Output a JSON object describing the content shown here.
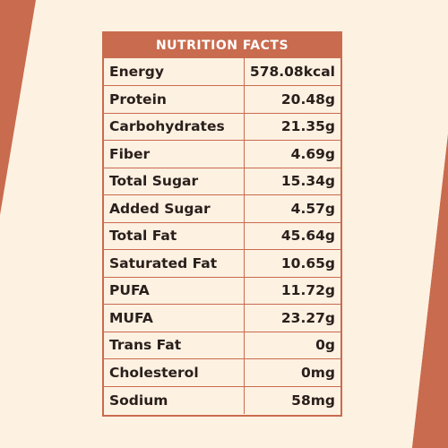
{
  "colors": {
    "accent": "#c96b4e",
    "background_light": "#fdf1e2",
    "panel_bg": "#fdf1e2",
    "text": "#2a1f1b"
  },
  "panel": {
    "title": "NUTRITION FACTS",
    "rows": [
      {
        "name": "Energy",
        "value": "578.08kcal"
      },
      {
        "name": "Protein",
        "value": "20.48g"
      },
      {
        "name": "Carbohydrates",
        "value": "21.35g"
      },
      {
        "name": "Fiber",
        "value": "4.69g"
      },
      {
        "name": "Total Sugar",
        "value": "15.34g"
      },
      {
        "name": "Added Sugar",
        "value": "4.57g"
      },
      {
        "name": "Total Fat",
        "value": "45.64g"
      },
      {
        "name": "Saturated Fat",
        "value": "10.65g"
      },
      {
        "name": "PUFA",
        "value": "11.72g"
      },
      {
        "name": "MUFA",
        "value": "23.27g"
      },
      {
        "name": "Trans Fat",
        "value": "0g"
      },
      {
        "name": "Cholesterol",
        "value": "0mg"
      },
      {
        "name": "Sodium",
        "value": "58mg"
      }
    ]
  }
}
